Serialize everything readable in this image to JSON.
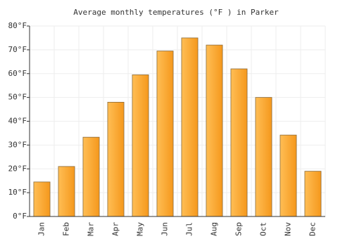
{
  "chart_data": {
    "type": "bar",
    "title": "Average monthly temperatures (°F ) in Parker",
    "categories": [
      "Jan",
      "Feb",
      "Mar",
      "Apr",
      "May",
      "Jun",
      "Jul",
      "Aug",
      "Sep",
      "Oct",
      "Nov",
      "Dec"
    ],
    "values": [
      14.5,
      21,
      33.3,
      48,
      59.5,
      69.5,
      75,
      72,
      62,
      50,
      34.2,
      19
    ],
    "color": "#f7a52a",
    "ylim": [
      0,
      80
    ],
    "yticks": [
      {
        "value": 0,
        "label": "0°F"
      },
      {
        "value": 10,
        "label": "10°F"
      },
      {
        "value": 20,
        "label": "20°F"
      },
      {
        "value": 30,
        "label": "30°F"
      },
      {
        "value": 40,
        "label": "40°F"
      },
      {
        "value": 50,
        "label": "50°F"
      },
      {
        "value": 60,
        "label": "60°F"
      },
      {
        "value": 70,
        "label": "70°F"
      },
      {
        "value": 80,
        "label": "80°F"
      }
    ],
    "grid": true
  }
}
